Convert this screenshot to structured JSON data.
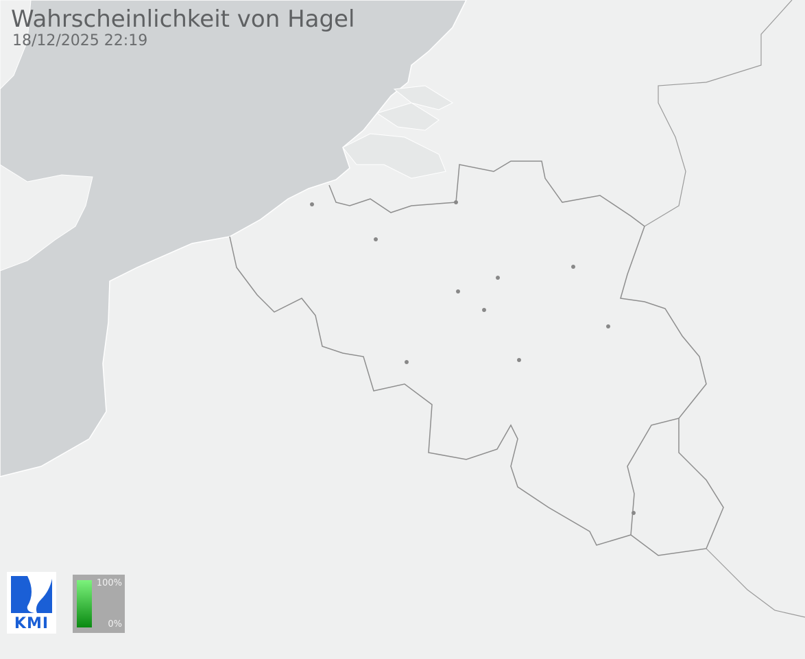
{
  "header": {
    "title": "Wahrscheinlichkeit von Hagel",
    "timestamp": "18/12/2025 22:19"
  },
  "logo": {
    "text": "KMI",
    "color": "#1a5fd6"
  },
  "legend": {
    "max_label": "100%",
    "min_label": "0%",
    "color_high": "#7cf27c",
    "color_low": "#0a8a12"
  },
  "map": {
    "land_color": "#eff0f0",
    "sea_color": "#d0d3d5",
    "border_color": "#8e8e8e",
    "city_marker_color": "#888888"
  }
}
